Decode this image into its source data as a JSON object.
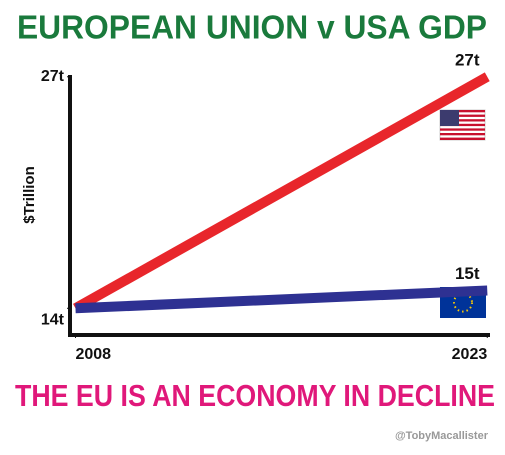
{
  "chart_data": {
    "type": "line",
    "title": "EUROPEAN UNION v USA GDP",
    "subtitle": "THE EU IS AN ECONOMY IN DECLINE",
    "credit": "@TobyMacallister",
    "y_label": "$Trillion",
    "x": [
      2008,
      2023
    ],
    "xlim": [
      2007.8,
      2023.1
    ],
    "xticks": [
      2008,
      2023
    ],
    "ylim": [
      12.5,
      27.1
    ],
    "yticks": [
      {
        "value": 14,
        "label": "14t"
      },
      {
        "value": 27,
        "label": "27t"
      }
    ],
    "grid": false,
    "series": [
      {
        "color": "#e8262b",
        "values": [
          14,
          27
        ],
        "value_labels": [
          null,
          "27t"
        ]
      },
      {
        "color": "#2e3192",
        "values": [
          14,
          15
        ],
        "value_labels": [
          null,
          "15t"
        ]
      }
    ]
  }
}
